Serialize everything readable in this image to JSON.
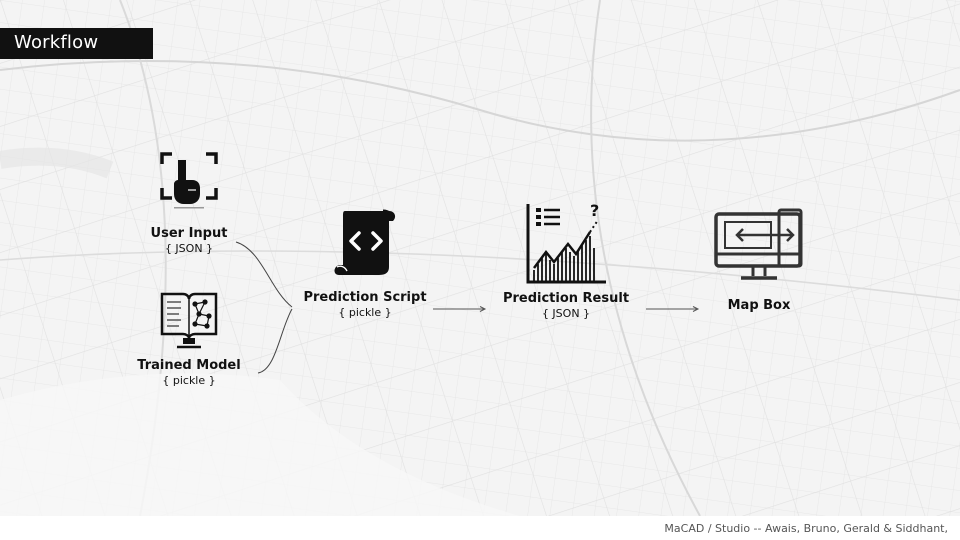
{
  "slide": {
    "title": "Workflow",
    "credit": "MaCAD / Studio -- Awais, Bruno, Gerald & Siddhant,"
  },
  "nodes": {
    "user_input": {
      "label": "User Input",
      "sub": "{ JSON }",
      "icon": "touch-gesture-icon"
    },
    "trained_model": {
      "label": "Trained Model",
      "sub": "{ pickle }",
      "icon": "book-network-icon"
    },
    "prediction_script": {
      "label": "Prediction Script",
      "sub": "{ pickle }",
      "icon": "code-scroll-icon"
    },
    "prediction_result": {
      "label": "Prediction Result",
      "sub": "{ JSON }",
      "icon": "chart-question-icon"
    },
    "map_box": {
      "label": "Map Box",
      "icon": "monitor-arrows-icon"
    }
  },
  "colors": {
    "title_bg": "#111111",
    "title_text": "#ffffff",
    "ink": "#111111",
    "background": "#f3f3f3"
  }
}
